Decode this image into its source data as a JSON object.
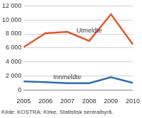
{
  "chart_data": {
    "type": "line",
    "categories": [
      "2005",
      "2006",
      "2007",
      "2008",
      "2009",
      "2010"
    ],
    "series": [
      {
        "name": "Utmeldte",
        "color": "#e4572e",
        "values": [
          6100,
          8100,
          8300,
          7000,
          10800,
          6500
        ]
      },
      {
        "name": "Innmeldte",
        "color": "#2e6db4",
        "values": [
          1200,
          1100,
          950,
          950,
          1800,
          1000
        ]
      }
    ],
    "ylim": [
      0,
      12000
    ],
    "yticks": [
      0,
      {
        "value": 2000,
        "label": "2 000"
      },
      {
        "value": 4000,
        "label": "4 000"
      },
      {
        "value": 6000,
        "label": "6 000"
      },
      {
        "value": 8000,
        "label": "8 000"
      },
      {
        "value": 10000,
        "label": "10 000"
      },
      {
        "value": 12000,
        "label": "12 000"
      }
    ],
    "grid": true,
    "source": "Kilde: KOSTRA: Kirke, Statistisk sentralbyrå."
  }
}
